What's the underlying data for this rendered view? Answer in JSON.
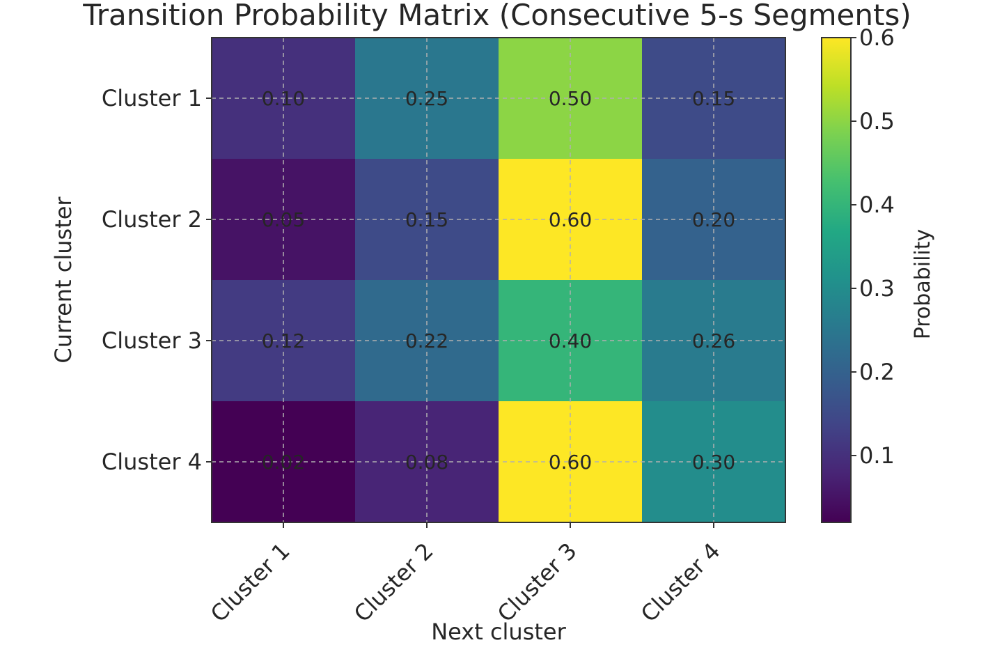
{
  "chart_data": {
    "type": "heatmap",
    "title": "Transition Probability Matrix (Consecutive 5-s Segments)",
    "xlabel": "Next cluster",
    "ylabel": "Current cluster",
    "x_categories": [
      "Cluster 1",
      "Cluster 2",
      "Cluster 3",
      "Cluster 4"
    ],
    "y_categories": [
      "Cluster 1",
      "Cluster 2",
      "Cluster 3",
      "Cluster 4"
    ],
    "values": [
      [
        0.1,
        0.25,
        0.5,
        0.15
      ],
      [
        0.05,
        0.15,
        0.6,
        0.2
      ],
      [
        0.12,
        0.22,
        0.4,
        0.26
      ],
      [
        0.02,
        0.08,
        0.6,
        0.3
      ]
    ],
    "cell_labels": [
      [
        "0.10",
        "0.25",
        "0.50",
        "0.15"
      ],
      [
        "0.05",
        "0.15",
        "0.60",
        "0.20"
      ],
      [
        "0.12",
        "0.22",
        "0.40",
        "0.26"
      ],
      [
        "0.02",
        "0.08",
        "0.60",
        "0.30"
      ]
    ],
    "colormap": "viridis",
    "color_range": [
      0.02,
      0.6
    ],
    "colorbar": {
      "label": "Probability",
      "ticks": [
        0.1,
        0.2,
        0.3,
        0.4,
        0.5,
        0.6
      ],
      "tick_labels": [
        "0.1",
        "0.2",
        "0.3",
        "0.4",
        "0.5",
        "0.6"
      ]
    },
    "grid": true,
    "x_tick_rotation": 45
  }
}
